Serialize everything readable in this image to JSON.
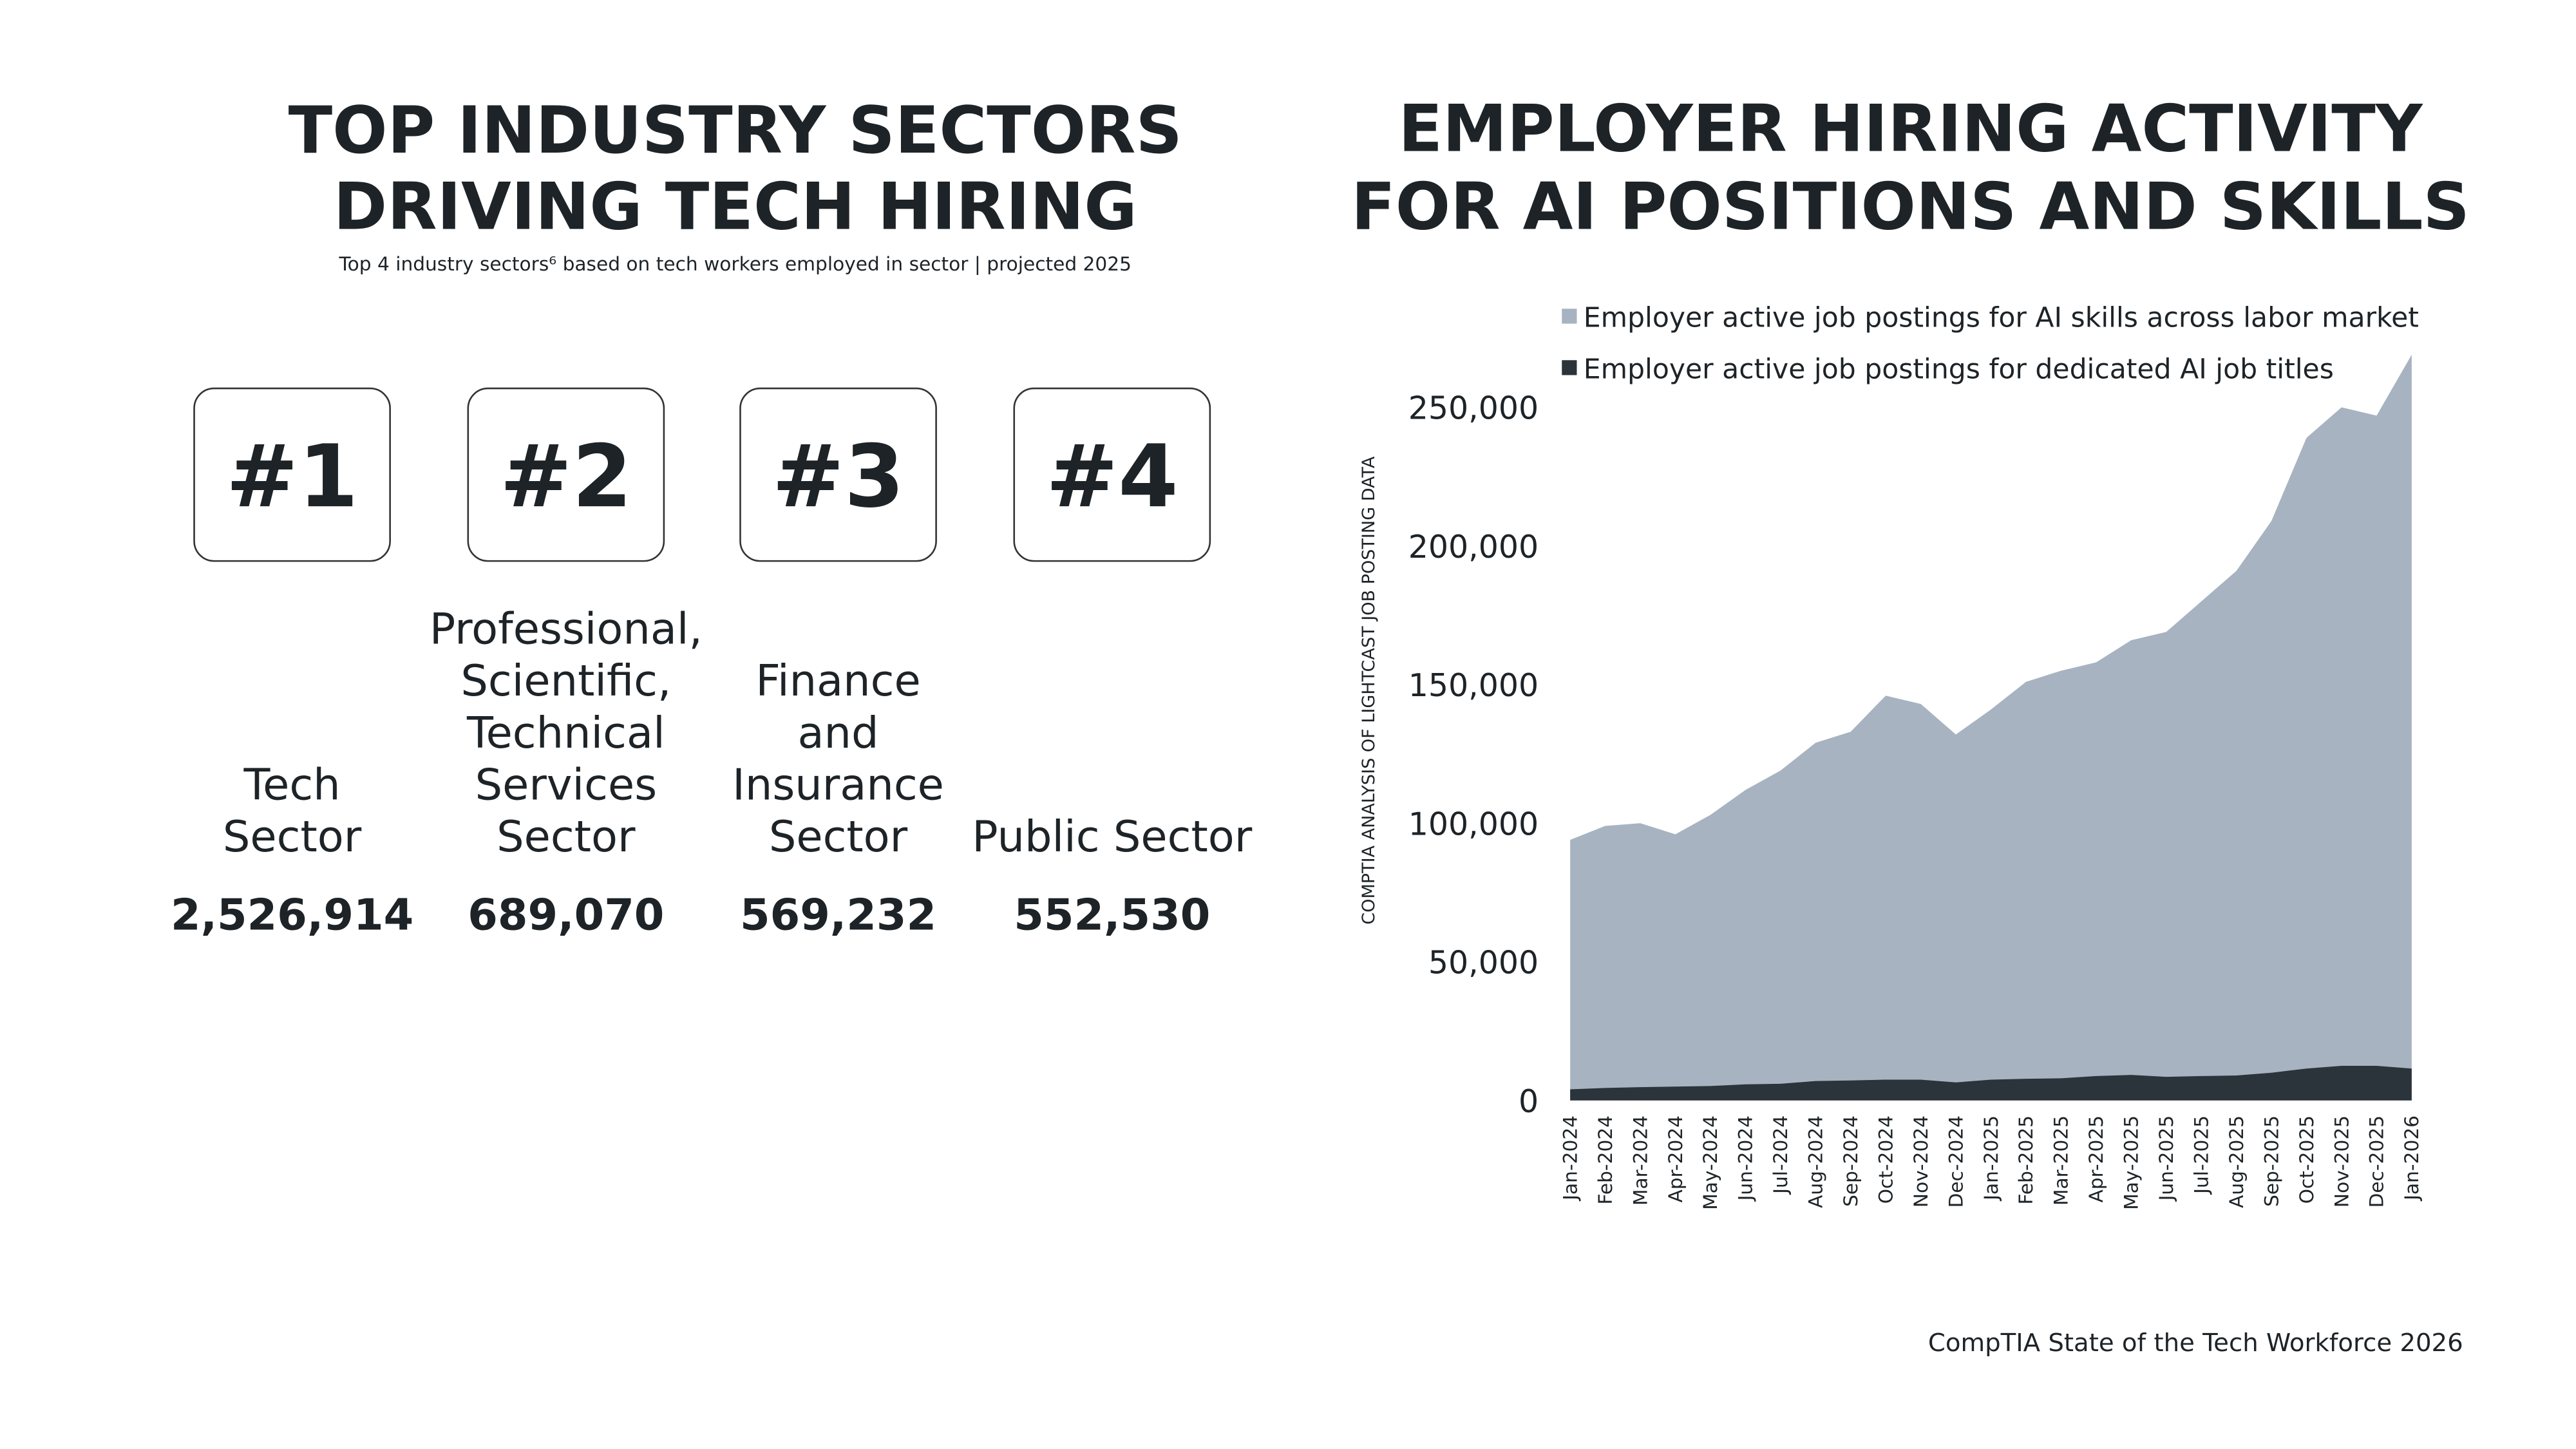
{
  "left": {
    "title": [
      "TOP INDUSTRY SECTORS",
      "DRIVING TECH HIRING"
    ],
    "subtitle": "Top 4 industry sectors⁶ based on tech workers employed in sector | projected 2025",
    "sectors": [
      {
        "rank": "#1",
        "name": [
          "Tech",
          "Sector"
        ],
        "workers": "2,526,914"
      },
      {
        "rank": "#2",
        "name": [
          "Professional,",
          "Scientific,",
          "Technical",
          "Services",
          "Sector"
        ],
        "workers": "689,070"
      },
      {
        "rank": "#3",
        "name": [
          "Finance",
          "and",
          "Insurance",
          "Sector"
        ],
        "workers": "569,232"
      },
      {
        "rank": "#4",
        "name": [
          "Public Sector"
        ],
        "workers": "552,530"
      }
    ]
  },
  "chart_data": {
    "type": "area",
    "title": [
      "EMPLOYER HIRING ACTIVITY",
      "FOR AI POSITIONS AND SKILLS"
    ],
    "y_label": "COMPTIA ANALYSIS OF LIGHTCAST JOB POSTING DATA",
    "categories": [
      "Jan-2024",
      "Feb-2024",
      "Mar-2024",
      "Apr-2024",
      "May-2024",
      "Jun-2024",
      "Jul-2024",
      "Aug-2024",
      "Sep-2024",
      "Oct-2024",
      "Nov-2024",
      "Dec-2024",
      "Jan-2025",
      "Feb-2025",
      "Mar-2025",
      "Apr-2025",
      "May-2025",
      "Jun-2025",
      "Jul-2025",
      "Aug-2025",
      "Sep-2025",
      "Oct-2025",
      "Nov-2025",
      "Dec-2025",
      "Jan-2026"
    ],
    "series": [
      {
        "name": "Employer active job postings for AI skills across labor market",
        "color": "#a7b3c0",
        "values": [
          94000,
          99000,
          100000,
          96000,
          103000,
          112000,
          119000,
          129000,
          133000,
          146000,
          143000,
          132000,
          141000,
          151000,
          155000,
          158000,
          166000,
          169000,
          180000,
          191000,
          209000,
          239000,
          250000,
          247000,
          269000
        ]
      },
      {
        "name": "Employer active job postings for dedicated AI job titles",
        "color": "#2b333b",
        "values": [
          4000,
          4500,
          4800,
          5000,
          5200,
          5800,
          6000,
          7000,
          7200,
          7500,
          7500,
          6500,
          7500,
          7800,
          8000,
          8800,
          9200,
          8500,
          8800,
          9000,
          10000,
          11500,
          12500,
          12500,
          11500
        ]
      }
    ],
    "ylim": [
      0,
      270000
    ],
    "yticks": [
      {
        "value": 0,
        "label": "0"
      },
      {
        "value": 50000,
        "label": "50,000"
      },
      {
        "value": 100000,
        "label": "100,000"
      },
      {
        "value": 150000,
        "label": "150,000"
      },
      {
        "value": 200000,
        "label": "200,000"
      },
      {
        "value": 250000,
        "label": "250,000"
      }
    ],
    "grid": false,
    "legend": "top"
  },
  "footer": "CompTIA State of the Tech Workforce 2026"
}
